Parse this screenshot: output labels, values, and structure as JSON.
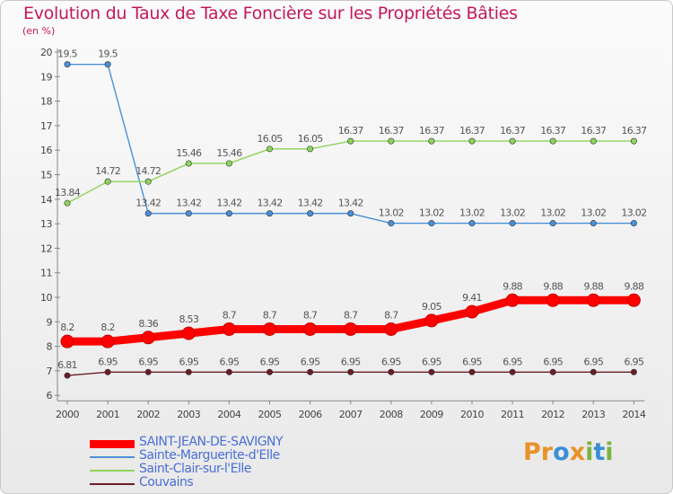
{
  "header": {
    "title": "Evolution du Taux de Taxe Foncière sur les Propriétés Bâties",
    "unit": "(en %)"
  },
  "logo": {
    "text": "Proxiti",
    "letters": [
      "P",
      "r",
      "o",
      "x",
      "i",
      "t",
      "i"
    ],
    "colors": [
      "#e8922a",
      "#e8922a",
      "#3a8fd6",
      "#e8922a",
      "#7cb342",
      "#3a8fd6",
      "#7cb342"
    ]
  },
  "chart_data": {
    "type": "line",
    "title": "Evolution du Taux de Taxe Foncière sur les Propriétés Bâties",
    "ylabel": "(en %)",
    "xlabel": "",
    "ylim": [
      6,
      20
    ],
    "yticks": [
      "6",
      "7",
      "8",
      "9",
      "10",
      "11",
      "12",
      "13",
      "14",
      "15",
      "16",
      "17",
      "18",
      "19",
      "20"
    ],
    "categories": [
      "2000",
      "2001",
      "2002",
      "2003",
      "2004",
      "2005",
      "2006",
      "2007",
      "2008",
      "2009",
      "2010",
      "2011",
      "2012",
      "2013",
      "2014"
    ],
    "series": [
      {
        "name": "SAINT-JEAN-DE-SAVIGNY",
        "color": "#ff0000",
        "values": [
          8.2,
          8.2,
          8.36,
          8.53,
          8.7,
          8.7,
          8.7,
          8.7,
          8.7,
          9.05,
          9.41,
          9.88,
          9.88,
          9.88,
          9.88
        ],
        "labels": [
          "8.2",
          "8.2",
          "8.36",
          "8.53",
          "8.7",
          "8.7",
          "8.7",
          "8.7",
          "8.7",
          "9.05",
          "9.41",
          "9.88",
          "9.88",
          "9.88",
          "9.88"
        ]
      },
      {
        "name": "Sainte-Marguerite-d'Elle",
        "color": "#4a90d9",
        "values": [
          19.5,
          19.5,
          13.42,
          13.42,
          13.42,
          13.42,
          13.42,
          13.42,
          13.02,
          13.02,
          13.02,
          13.02,
          13.02,
          13.02,
          13.02
        ],
        "labels": [
          "19.5",
          "19.5",
          "13.42",
          "13.42",
          "13.42",
          "13.42",
          "13.42",
          "13.42",
          "13.02",
          "13.02",
          "13.02",
          "13.02",
          "13.02",
          "13.02",
          "13.02"
        ]
      },
      {
        "name": "Saint-Clair-sur-l'Elle",
        "color": "#8ed45a",
        "values": [
          13.84,
          14.72,
          14.72,
          15.46,
          15.46,
          16.05,
          16.05,
          16.37,
          16.37,
          16.37,
          16.37,
          16.37,
          16.37,
          16.37,
          16.37
        ],
        "labels": [
          "13.84",
          "14.72",
          "14.72",
          "15.46",
          "15.46",
          "16.05",
          "16.05",
          "16.37",
          "16.37",
          "16.37",
          "16.37",
          "16.37",
          "16.37",
          "16.37",
          "16.37"
        ]
      },
      {
        "name": "Couvains",
        "color": "#6b1d24",
        "values": [
          6.81,
          6.95,
          6.95,
          6.95,
          6.95,
          6.95,
          6.95,
          6.95,
          6.95,
          6.95,
          6.95,
          6.95,
          6.95,
          6.95,
          6.95
        ],
        "labels": [
          "6.81",
          "6.95",
          "6.95",
          "6.95",
          "6.95",
          "6.95",
          "6.95",
          "6.95",
          "6.95",
          "6.95",
          "6.95",
          "6.95",
          "6.95",
          "6.95",
          "6.95"
        ]
      }
    ],
    "legend_position": "bottom-left",
    "grid": false
  }
}
